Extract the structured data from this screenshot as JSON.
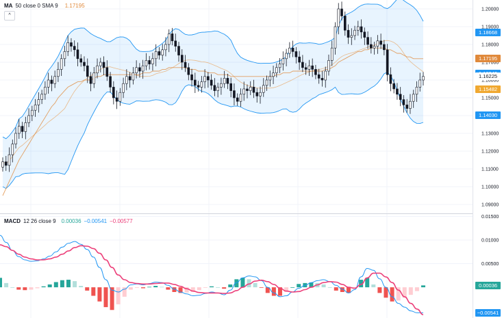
{
  "legend_top": {
    "name": "MA",
    "params": "50 close 0 SMA 9",
    "value": "1.17195",
    "value_color": "#e0893b"
  },
  "legend_macd": {
    "name": "MACD",
    "params": "12 26 close 9",
    "v1": "0.00036",
    "v2": "−0.00541",
    "v3": "−0.00577",
    "v1_color": "#26a69a",
    "v2_color": "#2196f3",
    "v3_color": "#ec407a"
  },
  "collapse_icon": "chevron-up-icon",
  "price_tags": [
    {
      "text": "1.18668",
      "value": 1.18668,
      "color": "#2196f3"
    },
    {
      "text": "1.17195",
      "value": 1.17195,
      "color": "#e0893b"
    },
    {
      "text": "1.16349",
      "value": 1.16349,
      "color": "#2196f3"
    },
    {
      "text": "1.16225",
      "value": 1.16225,
      "color": "#ffffff"
    },
    {
      "text": "1.15482",
      "value": 1.15482,
      "color": "#f0a830"
    },
    {
      "text": "1.14030",
      "value": 1.1403,
      "color": "#2196f3"
    }
  ],
  "macd_tags": [
    {
      "text": "0.00036",
      "value": 0.00036,
      "color": "#26a69a"
    },
    {
      "text": "−0.00541",
      "value": -0.00541,
      "color": "#2196f3"
    }
  ],
  "chart_data": [
    {
      "type": "candlestick",
      "ylim": [
        1.085,
        1.205
      ],
      "y_ticks": [
        "1.20000",
        "1.19000",
        "1.18000",
        "1.17000",
        "1.16000",
        "1.15000",
        "1.14000",
        "1.13000",
        "1.12000",
        "1.11000",
        "1.10000",
        "1.09000"
      ],
      "y_tick_values": [
        1.2,
        1.19,
        1.18,
        1.17,
        1.16,
        1.15,
        1.14,
        1.13,
        1.12,
        1.11,
        1.1,
        1.09
      ],
      "grid": true,
      "closes": [
        1.114,
        1.112,
        1.118,
        1.124,
        1.13,
        1.134,
        1.131,
        1.136,
        1.14,
        1.143,
        1.146,
        1.149,
        1.152,
        1.156,
        1.16,
        1.158,
        1.162,
        1.166,
        1.172,
        1.176,
        1.181,
        1.179,
        1.177,
        1.172,
        1.17,
        1.168,
        1.162,
        1.158,
        1.164,
        1.168,
        1.17,
        1.167,
        1.162,
        1.156,
        1.15,
        1.148,
        1.153,
        1.158,
        1.162,
        1.16,
        1.164,
        1.167,
        1.165,
        1.168,
        1.171,
        1.169,
        1.172,
        1.176,
        1.174,
        1.177,
        1.18,
        1.186,
        1.182,
        1.179,
        1.174,
        1.17,
        1.167,
        1.163,
        1.16,
        1.157,
        1.156,
        1.159,
        1.162,
        1.16,
        1.157,
        1.154,
        1.156,
        1.158,
        1.161,
        1.158,
        1.154,
        1.15,
        1.148,
        1.152,
        1.155,
        1.154,
        1.156,
        1.153,
        1.151,
        1.153,
        1.157,
        1.16,
        1.162,
        1.164,
        1.167,
        1.169,
        1.172,
        1.175,
        1.178,
        1.176,
        1.173,
        1.17,
        1.167,
        1.166,
        1.168,
        1.166,
        1.163,
        1.161,
        1.16,
        1.165,
        1.171,
        1.178,
        1.19,
        1.2,
        1.196,
        1.188,
        1.184,
        1.185,
        1.188,
        1.19,
        1.187,
        1.184,
        1.18,
        1.178,
        1.179,
        1.182,
        1.18,
        1.177,
        1.163,
        1.158,
        1.155,
        1.152,
        1.149,
        1.146,
        1.144,
        1.148,
        1.152,
        1.156,
        1.16,
        1.162
      ],
      "ma_slow": [
        1.095,
        1.099,
        1.103,
        1.107,
        1.111,
        1.115,
        1.118,
        1.121,
        1.124,
        1.127,
        1.13,
        1.133,
        1.136,
        1.139,
        1.142,
        1.145,
        1.147,
        1.15,
        1.152,
        1.154,
        1.156,
        1.157,
        1.158,
        1.159,
        1.159,
        1.16,
        1.16,
        1.16,
        1.161,
        1.162,
        1.162,
        1.163,
        1.163,
        1.163,
        1.163,
        1.163,
        1.163,
        1.163,
        1.163,
        1.163,
        1.163,
        1.163,
        1.163,
        1.164,
        1.164,
        1.164,
        1.165,
        1.165,
        1.165,
        1.166,
        1.166,
        1.167,
        1.167,
        1.167,
        1.167,
        1.167,
        1.167,
        1.166,
        1.166,
        1.166,
        1.165,
        1.165,
        1.165,
        1.164,
        1.164,
        1.164,
        1.163,
        1.163,
        1.163,
        1.163,
        1.162,
        1.162,
        1.162,
        1.162,
        1.162,
        1.162,
        1.162,
        1.162,
        1.162,
        1.162,
        1.162,
        1.162,
        1.162,
        1.162,
        1.163,
        1.163,
        1.164,
        1.164,
        1.164,
        1.165,
        1.165,
        1.165,
        1.165,
        1.165,
        1.165,
        1.165,
        1.165,
        1.165,
        1.165,
        1.166,
        1.166,
        1.167,
        1.168,
        1.17,
        1.171,
        1.172,
        1.173,
        1.174,
        1.175,
        1.176,
        1.176,
        1.177,
        1.177,
        1.178,
        1.178,
        1.178,
        1.178,
        1.178,
        1.177,
        1.177,
        1.176,
        1.175,
        1.175,
        1.174,
        1.173,
        1.173,
        1.172,
        1.172,
        1.172,
        1.172
      ]
    },
    {
      "type": "macd",
      "ylim": [
        -0.0065,
        0.0155
      ],
      "y_ticks": [
        "0.01500",
        "0.01000",
        "0.00500"
      ],
      "y_tick_values": [
        0.015,
        0.01,
        0.005
      ],
      "macd": [
        0.011,
        0.0095,
        0.0078,
        0.0065,
        0.0058,
        0.0055,
        0.0056,
        0.006,
        0.0066,
        0.0075,
        0.0085,
        0.0093,
        0.0097,
        0.0091,
        0.008,
        0.0064,
        0.0042,
        0.0016,
        -0.0006,
        -0.001,
        -0.0004,
        0.0005,
        0.0007,
        0.0005,
        0.0008,
        0.0011,
        0.001,
        0.0004,
        -0.0004,
        -0.001,
        -0.0014,
        -0.0018,
        -0.0017,
        -0.0013,
        -0.001,
        -0.0012,
        -0.0016,
        -0.0006,
        0.001,
        0.002,
        0.0024,
        0.0022,
        0.0014,
        0.0,
        -0.0012,
        -0.002,
        -0.0018,
        -0.001,
        -0.0002,
        0.0004,
        0.001,
        0.0014,
        0.0016,
        0.0012,
        0.0004,
        -0.0004,
        -0.0012,
        -0.0005,
        0.0022,
        0.004,
        0.0036,
        0.0018,
        0.0,
        -0.002,
        -0.0034,
        -0.0042,
        -0.005,
        -0.0054,
        -0.0054
      ],
      "signal": [
        0.009,
        0.0086,
        0.0078,
        0.007,
        0.0064,
        0.006,
        0.0058,
        0.0058,
        0.006,
        0.0064,
        0.007,
        0.0077,
        0.0084,
        0.0088,
        0.0087,
        0.0082,
        0.0072,
        0.0058,
        0.0042,
        0.0026,
        0.0016,
        0.001,
        0.0008,
        0.0007,
        0.0007,
        0.0008,
        0.0009,
        0.0009,
        0.0006,
        0.0002,
        -0.0003,
        -0.0008,
        -0.0011,
        -0.0012,
        -0.0012,
        -0.0012,
        -0.0013,
        -0.0012,
        -0.0007,
        0.0,
        0.0007,
        0.0013,
        0.0015,
        0.0012,
        0.0006,
        -0.0002,
        -0.0008,
        -0.001,
        -0.0009,
        -0.0005,
        0.0,
        0.0005,
        0.001,
        0.0012,
        0.0011,
        0.0006,
        0.0,
        -0.0002,
        0.0006,
        0.002,
        0.003,
        0.003,
        0.0022,
        0.001,
        -0.0006,
        -0.002,
        -0.0034,
        -0.0046,
        -0.0058
      ]
    }
  ]
}
